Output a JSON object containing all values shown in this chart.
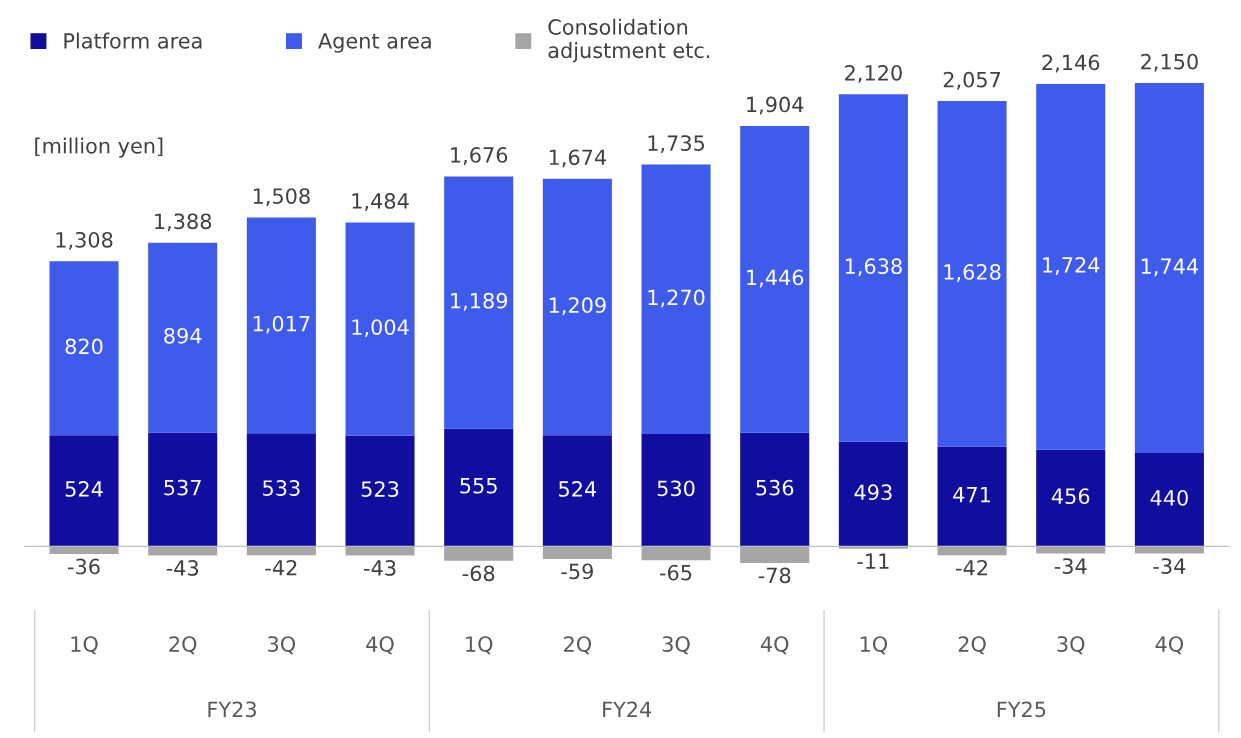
{
  "chart_data": {
    "type": "bar",
    "stacked": true,
    "ylabel": "[million yen]",
    "categories": [
      "1Q",
      "2Q",
      "3Q",
      "4Q",
      "1Q",
      "2Q",
      "3Q",
      "4Q",
      "1Q",
      "2Q",
      "3Q",
      "4Q"
    ],
    "series": [
      {
        "name": "Platform area",
        "color": "#110d9e",
        "values": [
          524,
          537,
          533,
          523,
          555,
          524,
          530,
          536,
          493,
          471,
          456,
          440
        ],
        "value_labels": [
          "524",
          "537",
          "533",
          "523",
          "555",
          "524",
          "530",
          "536",
          "493",
          "471",
          "456",
          "440"
        ]
      },
      {
        "name": "Agent area",
        "color": "#3f5bec",
        "values": [
          820,
          894,
          1017,
          1004,
          1189,
          1209,
          1270,
          1446,
          1638,
          1628,
          1724,
          1744
        ],
        "value_labels": [
          "820",
          "894",
          "1,017",
          "1,004",
          "1,189",
          "1,209",
          "1,270",
          "1,446",
          "1,638",
          "1,628",
          "1,724",
          "1,744"
        ]
      },
      {
        "name": "Consolidation\nadjustment etc.",
        "color": "#a6a6a6",
        "values": [
          -36,
          -43,
          -42,
          -43,
          -68,
          -59,
          -65,
          -78,
          -11,
          -42,
          -34,
          -34
        ],
        "value_labels": [
          "-36",
          "-43",
          "-42",
          "-43",
          "-68",
          "-59",
          "-65",
          "-78",
          "-11",
          "-42",
          "-34",
          "-34"
        ]
      }
    ],
    "totals": [
      "1,308",
      "1,388",
      "1,508",
      "1,484",
      "1,676",
      "1,674",
      "1,735",
      "1,904",
      "2,120",
      "2,057",
      "2,146",
      "2,150"
    ],
    "annotations": [
      "FY23",
      "FY24",
      "FY25"
    ],
    "legend": "top left"
  }
}
